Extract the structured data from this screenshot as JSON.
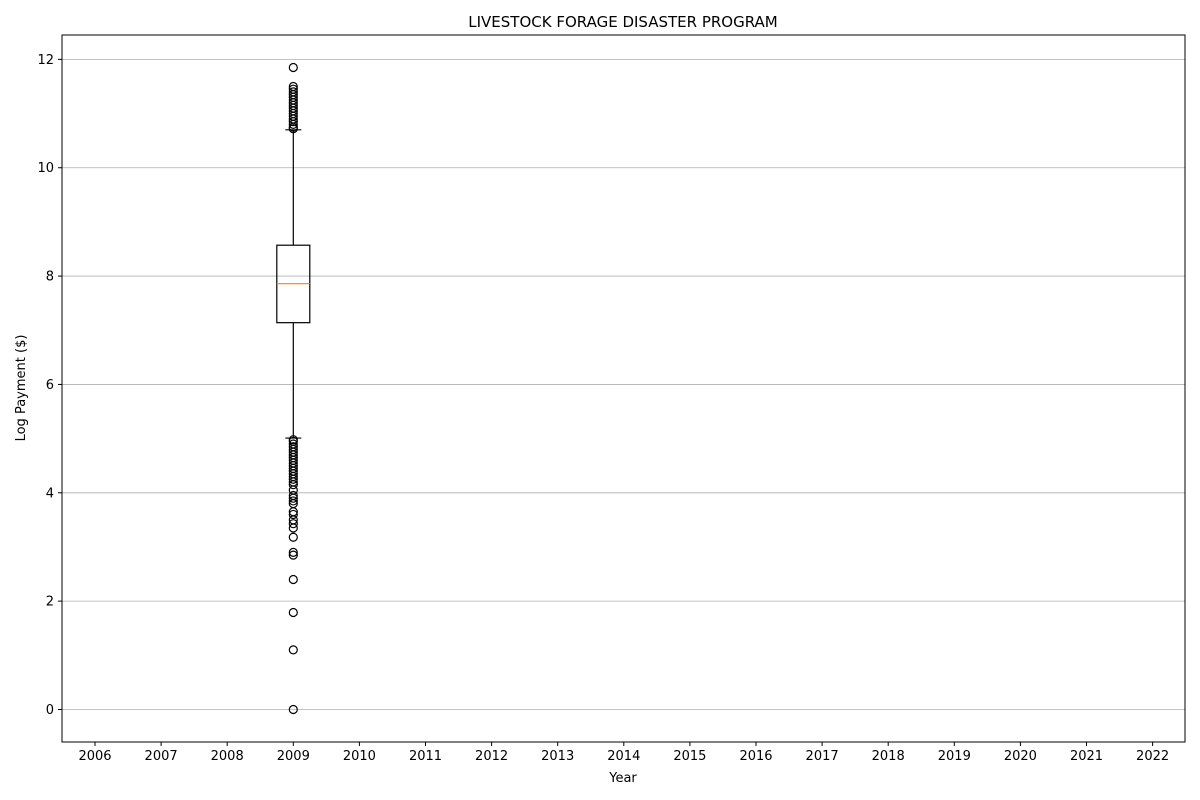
{
  "chart_data": {
    "type": "box",
    "title": "LIVESTOCK FORAGE DISASTER  PROGRAM",
    "xlabel": "Year",
    "ylabel": "Log Payment ($)",
    "categories": [
      "2006",
      "2007",
      "2008",
      "2009",
      "2010",
      "2011",
      "2012",
      "2013",
      "2014",
      "2015",
      "2016",
      "2017",
      "2018",
      "2019",
      "2020",
      "2021",
      "2022"
    ],
    "ylim": [
      -0.6,
      12.45
    ],
    "yticks": [
      0,
      2,
      4,
      6,
      8,
      10,
      12
    ],
    "grid": "y",
    "boxes": [
      {
        "category": "2009",
        "q1": 7.14,
        "median": 7.86,
        "q3": 8.57,
        "whisker_low": 5.01,
        "whisker_high": 10.7,
        "outliers": [
          11.85,
          11.5,
          11.45,
          11.4,
          11.35,
          11.3,
          11.25,
          11.2,
          11.15,
          11.1,
          11.05,
          11.0,
          10.95,
          10.9,
          10.85,
          10.8,
          10.75,
          10.72,
          4.98,
          4.95,
          4.9,
          4.85,
          4.8,
          4.75,
          4.7,
          4.65,
          4.6,
          4.55,
          4.5,
          4.45,
          4.4,
          4.35,
          4.3,
          4.25,
          4.2,
          4.15,
          4.05,
          3.95,
          3.9,
          3.85,
          3.8,
          3.65,
          3.6,
          3.5,
          3.43,
          3.35,
          3.18,
          2.9,
          2.85,
          2.4,
          1.79,
          1.1,
          0.0
        ]
      }
    ]
  }
}
